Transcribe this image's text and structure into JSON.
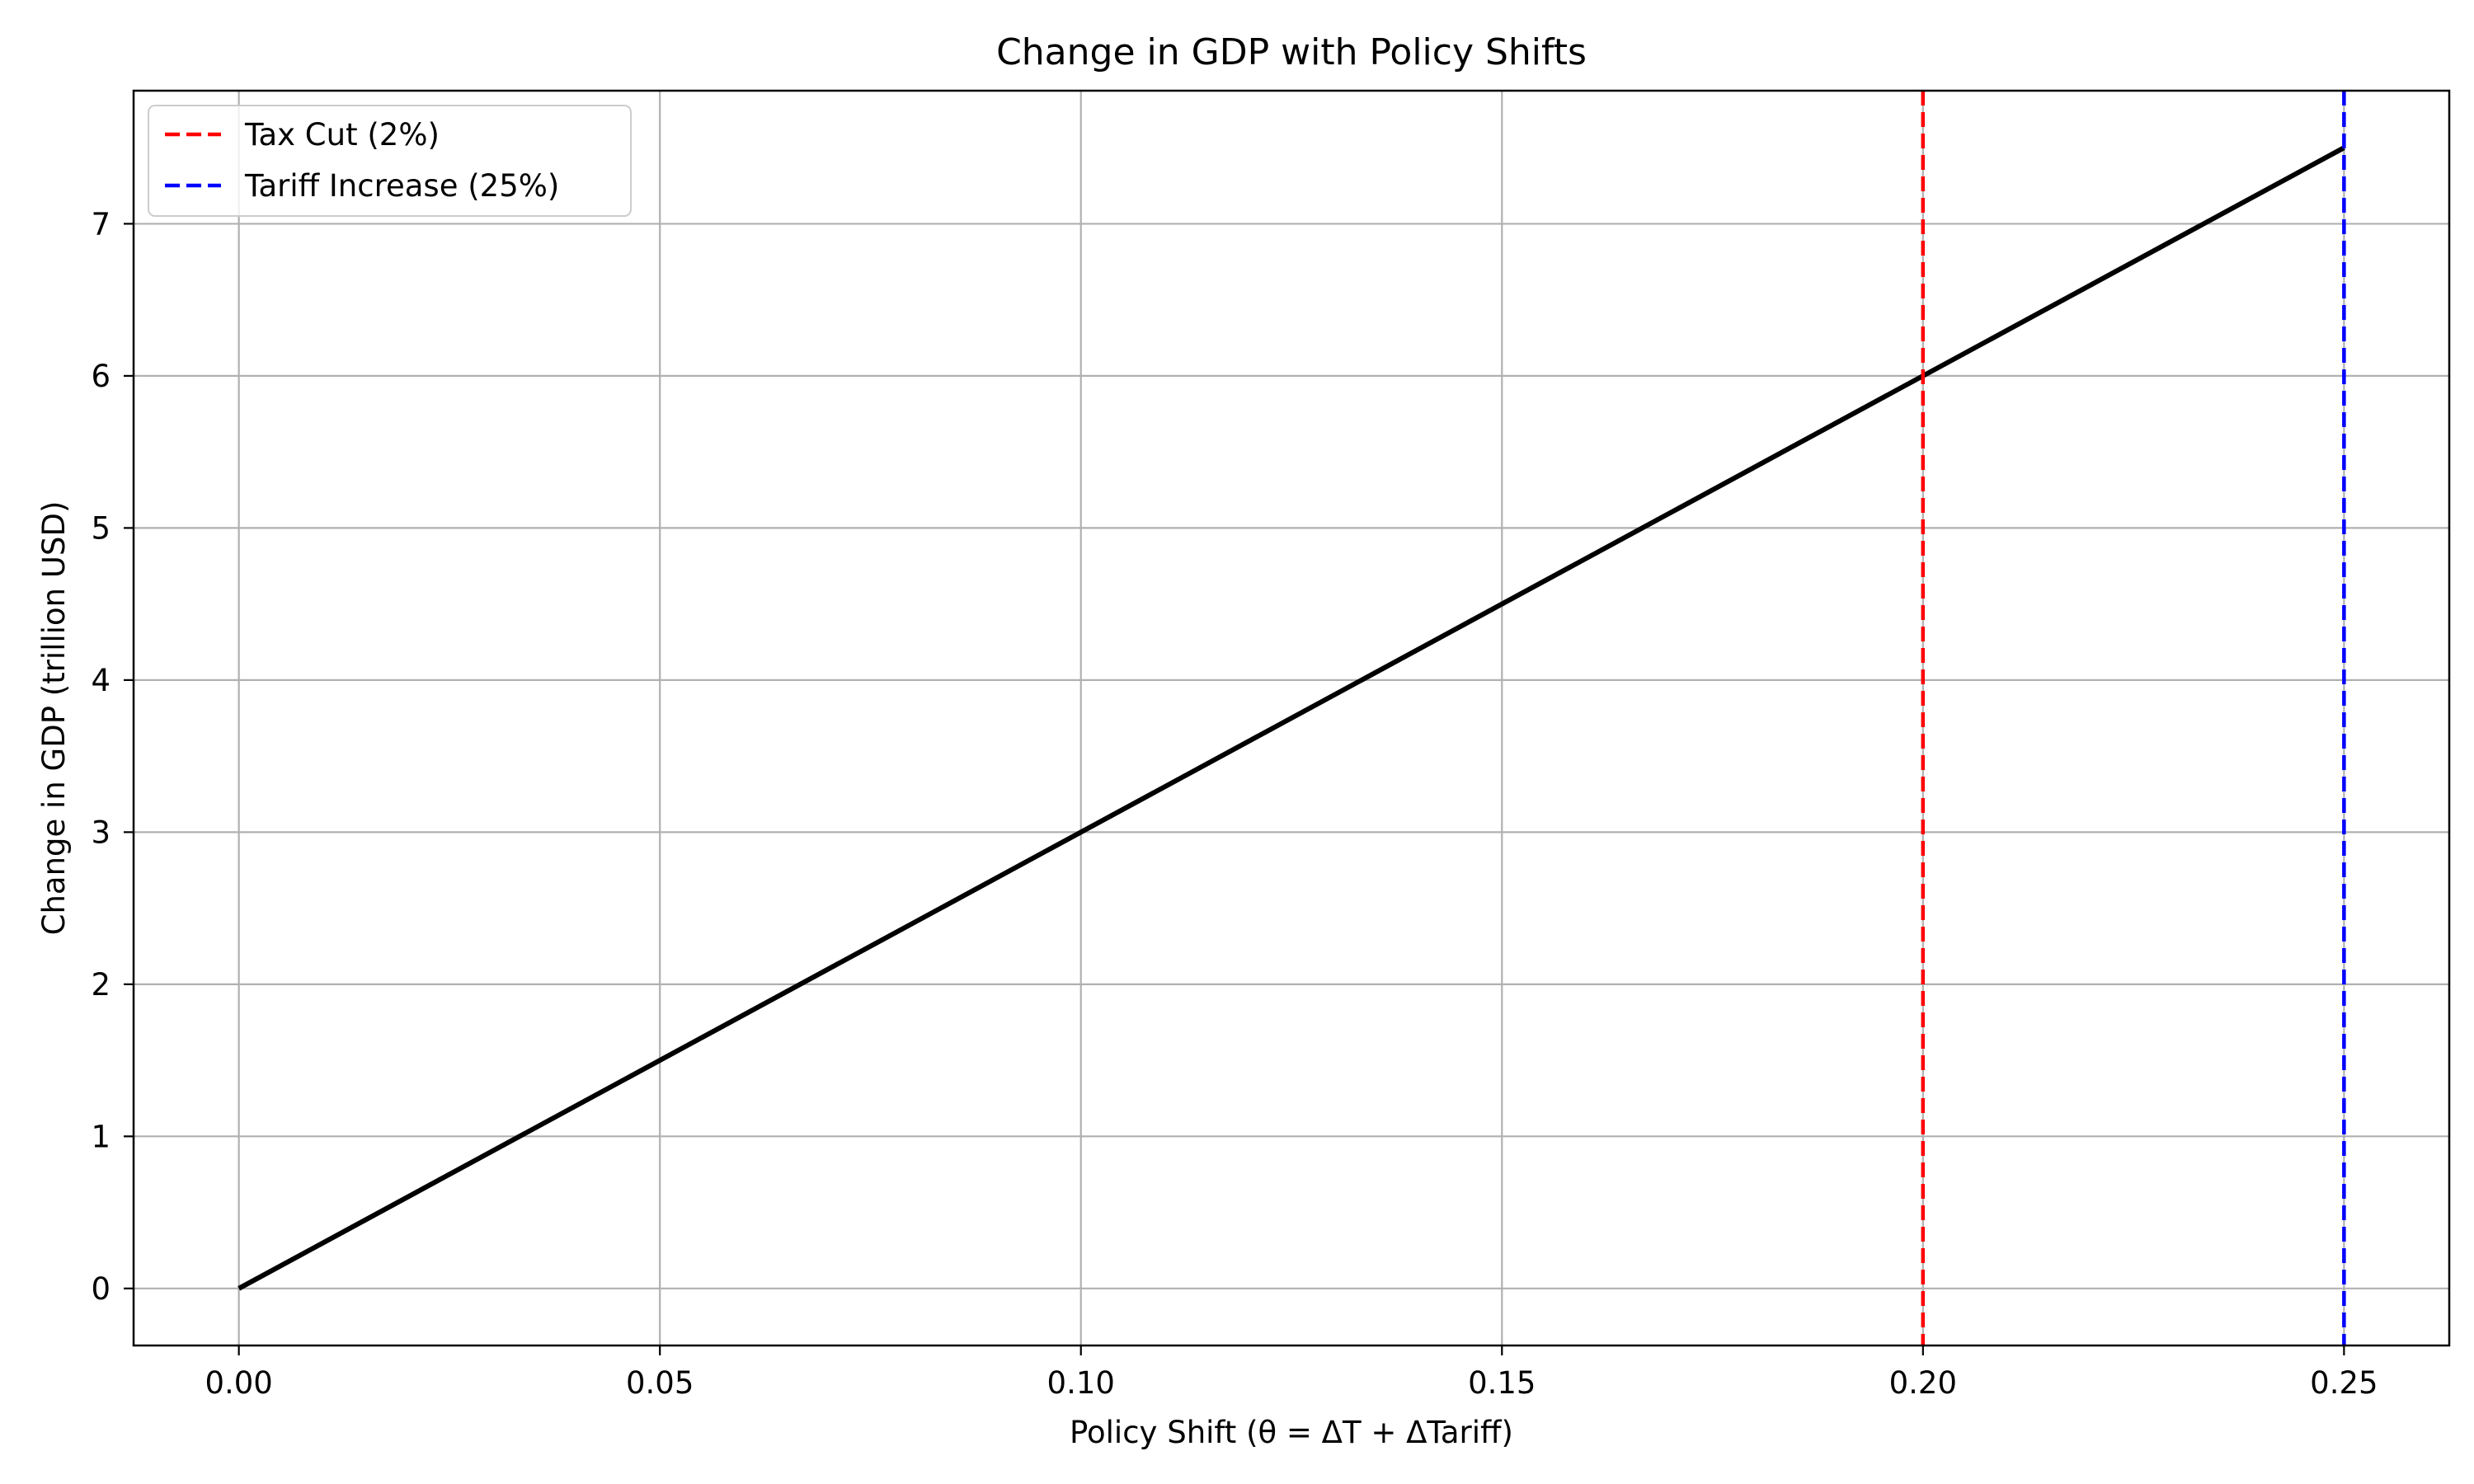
{
  "chart_data": {
    "type": "line",
    "title": "Change in GDP with Policy Shifts",
    "xlabel": "Policy Shift (θ = ΔT + ΔTariff)",
    "ylabel": "Change in GDP (trillion USD)",
    "xlim": [
      -0.0125,
      0.2625
    ],
    "ylim": [
      -0.375,
      7.875
    ],
    "xticks": [
      0.0,
      0.05,
      0.1,
      0.15,
      0.2,
      0.25
    ],
    "xtick_labels": [
      "0.00",
      "0.05",
      "0.10",
      "0.15",
      "0.20",
      "0.25"
    ],
    "yticks": [
      0,
      1,
      2,
      3,
      4,
      5,
      6,
      7
    ],
    "ytick_labels": [
      "0",
      "1",
      "2",
      "3",
      "4",
      "5",
      "6",
      "7"
    ],
    "grid": true,
    "legend_position": "top-left",
    "series": [
      {
        "x": [
          0.0,
          0.25
        ],
        "y": [
          0.0,
          7.5
        ],
        "color": "#000000",
        "style": "solid"
      }
    ],
    "vlines": [
      {
        "name": "Tax Cut (2%)",
        "x": 0.2,
        "color": "#ff0000",
        "style": "dashed"
      },
      {
        "name": "Tariff Increase (25%)",
        "x": 0.25,
        "color": "#0000ff",
        "style": "dashed"
      }
    ]
  }
}
